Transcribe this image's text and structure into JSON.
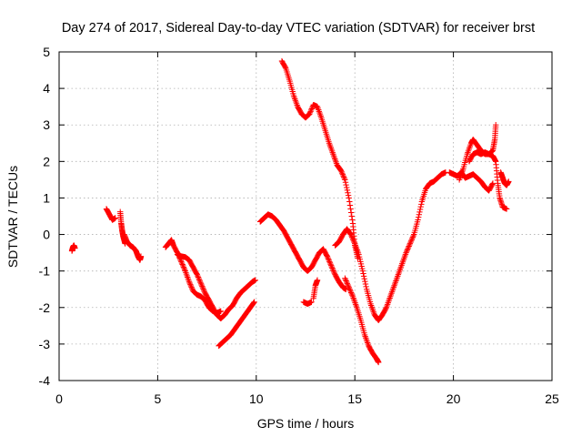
{
  "chart_data": {
    "type": "scatter",
    "title": "Day 274 of 2017, Sidereal Day-to-day VTEC variation (SDTVAR) for receiver brst",
    "xlabel": "GPS time / hours",
    "ylabel": "SDTVAR / TECUs",
    "xlim": [
      0,
      25
    ],
    "ylim": [
      -4,
      5
    ],
    "xticks": [
      0,
      5,
      10,
      15,
      20,
      25
    ],
    "yticks": [
      -4,
      -3,
      -2,
      -1,
      0,
      1,
      2,
      3,
      4,
      5
    ],
    "grid": true,
    "marker": "+",
    "series": [
      {
        "color": "#ff0000",
        "segments": [
          [
            [
              0.65,
              -0.45
            ],
            [
              0.7,
              -0.35
            ],
            [
              0.75,
              -0.3
            ],
            [
              0.8,
              -0.38
            ]
          ],
          [
            [
              2.4,
              0.7
            ],
            [
              2.55,
              0.55
            ],
            [
              2.7,
              0.4
            ],
            [
              2.85,
              0.45
            ]
          ],
          [
            [
              3.1,
              0.62
            ],
            [
              3.15,
              0.3
            ],
            [
              3.2,
              0.1
            ],
            [
              3.25,
              -0.05
            ],
            [
              3.3,
              -0.15
            ],
            [
              3.35,
              -0.25
            ]
          ],
          [
            [
              3.3,
              0.0
            ],
            [
              3.45,
              -0.2
            ],
            [
              3.6,
              -0.3
            ],
            [
              3.75,
              -0.35
            ],
            [
              3.9,
              -0.45
            ],
            [
              4.0,
              -0.6
            ],
            [
              4.1,
              -0.7
            ],
            [
              4.15,
              -0.6
            ]
          ],
          [
            [
              5.4,
              -0.35
            ],
            [
              5.55,
              -0.25
            ],
            [
              5.7,
              -0.15
            ],
            [
              5.8,
              -0.3
            ],
            [
              6.0,
              -0.5
            ],
            [
              6.2,
              -0.75
            ],
            [
              6.4,
              -1.0
            ],
            [
              6.6,
              -1.3
            ],
            [
              6.8,
              -1.55
            ],
            [
              7.0,
              -1.65
            ],
            [
              7.2,
              -1.7
            ],
            [
              7.4,
              -1.8
            ],
            [
              7.6,
              -2.0
            ],
            [
              7.8,
              -2.1
            ],
            [
              8.0,
              -2.15
            ],
            [
              8.2,
              -2.1
            ]
          ],
          [
            [
              6.0,
              -0.55
            ],
            [
              6.2,
              -0.6
            ],
            [
              6.4,
              -0.62
            ],
            [
              6.6,
              -0.7
            ],
            [
              6.8,
              -0.9
            ],
            [
              7.0,
              -1.1
            ],
            [
              7.2,
              -1.35
            ],
            [
              7.4,
              -1.6
            ],
            [
              7.6,
              -1.8
            ],
            [
              7.8,
              -2.0
            ],
            [
              8.0,
              -2.2
            ],
            [
              8.2,
              -2.3
            ],
            [
              8.4,
              -2.2
            ],
            [
              8.6,
              -2.05
            ],
            [
              8.8,
              -1.95
            ],
            [
              9.0,
              -1.75
            ],
            [
              9.2,
              -1.6
            ],
            [
              9.4,
              -1.5
            ],
            [
              9.6,
              -1.4
            ],
            [
              9.8,
              -1.3
            ],
            [
              9.95,
              -1.25
            ]
          ],
          [
            [
              8.1,
              -3.05
            ],
            [
              8.3,
              -2.95
            ],
            [
              8.5,
              -2.85
            ],
            [
              8.7,
              -2.75
            ],
            [
              8.9,
              -2.6
            ],
            [
              9.1,
              -2.45
            ],
            [
              9.3,
              -2.3
            ],
            [
              9.5,
              -2.15
            ],
            [
              9.7,
              -2.0
            ],
            [
              9.9,
              -1.85
            ]
          ],
          [
            [
              10.2,
              0.35
            ],
            [
              10.4,
              0.45
            ],
            [
              10.6,
              0.55
            ],
            [
              10.8,
              0.5
            ],
            [
              11.0,
              0.4
            ],
            [
              11.2,
              0.25
            ],
            [
              11.4,
              0.1
            ],
            [
              11.6,
              -0.1
            ],
            [
              11.8,
              -0.3
            ],
            [
              12.0,
              -0.5
            ],
            [
              12.2,
              -0.7
            ],
            [
              12.4,
              -0.9
            ],
            [
              12.6,
              -1.0
            ],
            [
              12.8,
              -0.9
            ],
            [
              13.0,
              -0.7
            ],
            [
              13.2,
              -0.5
            ],
            [
              13.4,
              -0.4
            ],
            [
              13.6,
              -0.6
            ],
            [
              13.8,
              -0.85
            ],
            [
              14.0,
              -1.1
            ],
            [
              14.2,
              -1.3
            ],
            [
              14.4,
              -1.45
            ],
            [
              14.55,
              -1.5
            ]
          ],
          [
            [
              12.4,
              -1.85
            ],
            [
              12.6,
              -1.9
            ],
            [
              12.8,
              -1.85
            ]
          ],
          [
            [
              12.9,
              -1.75
            ],
            [
              13.0,
              -1.4
            ],
            [
              13.1,
              -1.25
            ]
          ],
          [
            [
              11.3,
              4.75
            ],
            [
              11.5,
              4.55
            ],
            [
              11.7,
              4.2
            ],
            [
              11.9,
              3.8
            ],
            [
              12.1,
              3.5
            ],
            [
              12.3,
              3.3
            ],
            [
              12.5,
              3.2
            ],
            [
              12.7,
              3.3
            ],
            [
              12.9,
              3.55
            ],
            [
              13.1,
              3.5
            ],
            [
              13.3,
              3.2
            ],
            [
              13.5,
              2.85
            ],
            [
              13.7,
              2.5
            ],
            [
              13.9,
              2.2
            ],
            [
              14.1,
              1.9
            ],
            [
              14.3,
              1.75
            ],
            [
              14.5,
              1.5
            ],
            [
              14.7,
              1.0
            ],
            [
              14.9,
              0.3
            ],
            [
              15.0,
              -0.3
            ],
            [
              15.15,
              -0.65
            ]
          ],
          [
            [
              14.0,
              -0.3
            ],
            [
              14.2,
              -0.2
            ],
            [
              14.4,
              0.0
            ],
            [
              14.6,
              0.15
            ],
            [
              14.8,
              0.0
            ],
            [
              15.0,
              -0.25
            ],
            [
              15.2,
              -0.55
            ],
            [
              15.4,
              -1.0
            ],
            [
              15.6,
              -1.5
            ],
            [
              15.8,
              -1.9
            ],
            [
              16.0,
              -2.2
            ],
            [
              16.2,
              -2.35
            ],
            [
              16.4,
              -2.2
            ],
            [
              16.6,
              -2.0
            ],
            [
              16.8,
              -1.7
            ],
            [
              17.0,
              -1.4
            ],
            [
              17.2,
              -1.1
            ],
            [
              17.4,
              -0.8
            ],
            [
              17.6,
              -0.5
            ],
            [
              17.8,
              -0.25
            ],
            [
              18.0,
              0.0
            ],
            [
              18.2,
              0.4
            ],
            [
              18.4,
              0.9
            ],
            [
              18.6,
              1.25
            ],
            [
              18.8,
              1.4
            ],
            [
              19.0,
              1.45
            ],
            [
              19.2,
              1.55
            ],
            [
              19.4,
              1.65
            ],
            [
              19.6,
              1.7
            ]
          ],
          [
            [
              14.5,
              -1.2
            ],
            [
              14.7,
              -1.45
            ],
            [
              14.9,
              -1.7
            ],
            [
              15.1,
              -2.0
            ],
            [
              15.3,
              -2.35
            ],
            [
              15.5,
              -2.75
            ],
            [
              15.7,
              -3.05
            ],
            [
              15.9,
              -3.25
            ],
            [
              16.1,
              -3.4
            ],
            [
              16.2,
              -3.5
            ]
          ],
          [
            [
              19.8,
              1.7
            ],
            [
              20.0,
              1.65
            ],
            [
              20.2,
              1.6
            ],
            [
              20.4,
              1.7
            ],
            [
              20.6,
              1.55
            ],
            [
              20.8,
              1.6
            ],
            [
              21.0,
              1.65
            ],
            [
              21.2,
              1.55
            ],
            [
              21.4,
              1.45
            ],
            [
              21.6,
              1.3
            ],
            [
              21.8,
              1.2
            ],
            [
              22.0,
              1.4
            ]
          ],
          [
            [
              20.3,
              1.5
            ],
            [
              20.5,
              1.8
            ],
            [
              20.7,
              2.2
            ],
            [
              20.9,
              2.5
            ],
            [
              21.0,
              2.6
            ],
            [
              21.2,
              2.45
            ],
            [
              21.4,
              2.3
            ],
            [
              21.6,
              2.2
            ],
            [
              21.8,
              2.2
            ],
            [
              22.0,
              2.3
            ],
            [
              22.1,
              2.6
            ],
            [
              22.15,
              3.0
            ]
          ],
          [
            [
              20.8,
              2.0
            ],
            [
              21.0,
              2.2
            ],
            [
              21.2,
              2.25
            ],
            [
              21.4,
              2.2
            ],
            [
              21.6,
              2.25
            ],
            [
              21.8,
              2.2
            ],
            [
              22.0,
              2.15
            ],
            [
              22.15,
              2.0
            ],
            [
              22.25,
              1.4
            ],
            [
              22.35,
              1.0
            ],
            [
              22.5,
              0.75
            ],
            [
              22.7,
              0.7
            ]
          ],
          [
            [
              22.4,
              1.7
            ],
            [
              22.5,
              1.55
            ],
            [
              22.6,
              1.4
            ],
            [
              22.7,
              1.35
            ],
            [
              22.8,
              1.45
            ]
          ]
        ]
      }
    ]
  }
}
